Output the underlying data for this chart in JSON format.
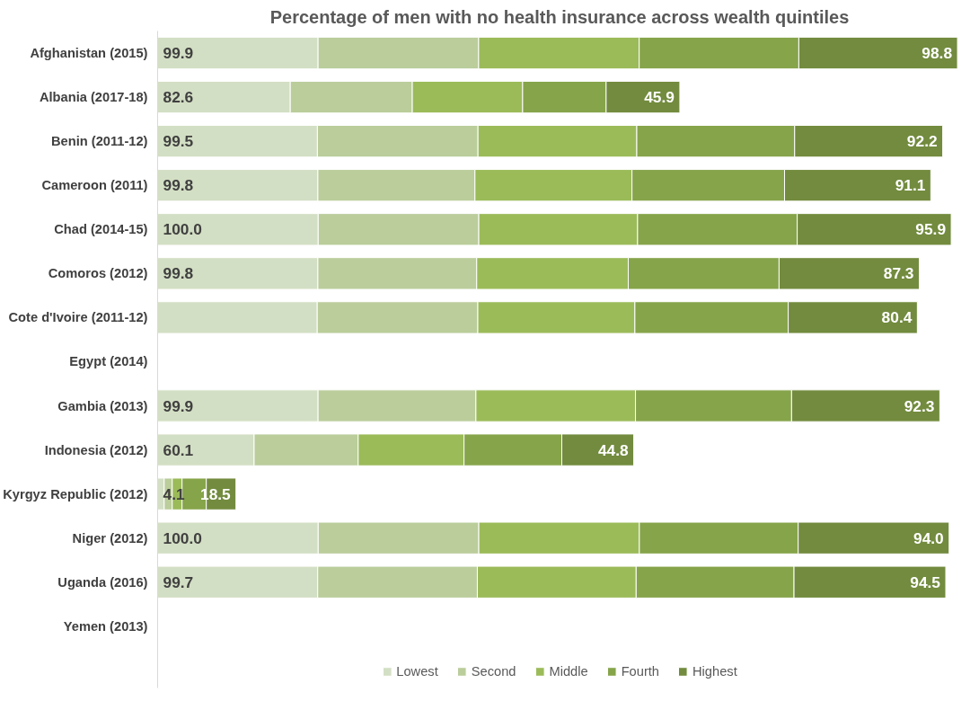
{
  "chart_data": {
    "type": "bar",
    "orientation": "horizontal",
    "stacked": true,
    "title": "Percentage of men with no health insurance across wealth quintiles",
    "categories": [
      "Afghanistan (2015)",
      "Albania (2017-18)",
      "Benin (2011-12)",
      "Cameroon (2011)",
      "Chad (2014-15)",
      "Comoros (2012)",
      "Cote d'Ivoire (2011-12)",
      "Egypt (2014)",
      "Gambia (2013)",
      "Indonesia (2012)",
      "Kyrgyz Republic (2012)",
      "Niger (2012)",
      "Uganda (2016)",
      "Yemen (2013)"
    ],
    "series": [
      {
        "name": "Lowest",
        "color": "#d3dfc4",
        "values": [
          99.9,
          82.6,
          99.5,
          99.8,
          100.0,
          99.8,
          99.4,
          null,
          99.9,
          60.1,
          4.1,
          100.0,
          99.7,
          null
        ],
        "value_labels": [
          "99.9",
          "82.6",
          "99.5",
          "99.8",
          "100.0",
          "99.8",
          null,
          null,
          "99.9",
          "60.1",
          "4.1",
          "100.0",
          "99.7",
          null
        ]
      },
      {
        "name": "Second",
        "color": "#bacd9b",
        "values": [
          100,
          76,
          100,
          97.8,
          100,
          98.9,
          100,
          null,
          98.3,
          64.8,
          5.0,
          100,
          99.4,
          null
        ]
      },
      {
        "name": "Middle",
        "color": "#9bbb59",
        "values": [
          100,
          68.7,
          98.9,
          97.8,
          98.9,
          94.4,
          97.8,
          null,
          99.4,
          65.9,
          6.1,
          100,
          98.9,
          null
        ]
      },
      {
        "name": "Fourth",
        "color": "#86a44a",
        "values": [
          99.4,
          52,
          98.3,
          95,
          99.4,
          93.9,
          95.5,
          null,
          97.2,
          60.9,
          15.1,
          98.9,
          98.3,
          null
        ]
      },
      {
        "name": "Highest",
        "color": "#728b3e",
        "values": [
          98.8,
          45.9,
          92.2,
          91.1,
          95.9,
          87.3,
          80.4,
          null,
          92.3,
          44.8,
          18.5,
          94.0,
          94.5,
          null
        ],
        "value_labels": [
          "98.8",
          "45.9",
          "92.2",
          "91.1",
          "95.9",
          "87.3",
          "80.4",
          null,
          "92.3",
          "44.8",
          "18.5",
          "94.0",
          "94.5",
          null
        ]
      }
    ],
    "legend": "bottom",
    "grid": false
  }
}
